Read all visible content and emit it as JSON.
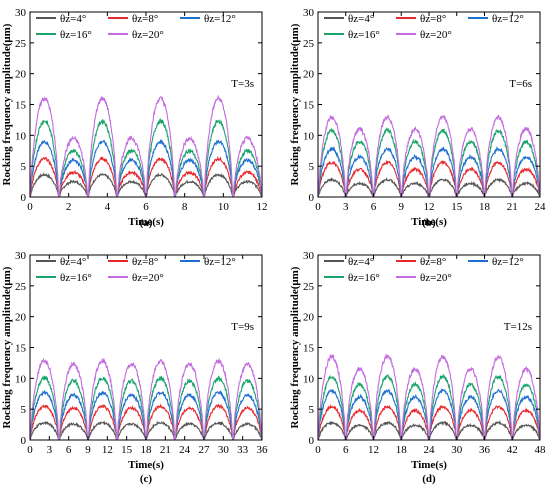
{
  "chart_data": [
    {
      "type": "line",
      "panel_label": "(a)",
      "annotation": "T=3s",
      "period": 3,
      "xlabel": "Time(s)",
      "ylabel": "Rocking frequency amplitude(μm)",
      "xlim": [
        0,
        12
      ],
      "ylim": [
        0,
        30
      ],
      "xticks": [
        0,
        2,
        4,
        6,
        8,
        10,
        12
      ],
      "yticks": [
        0,
        5,
        10,
        15,
        20,
        25,
        30
      ],
      "legend_position": "top-left",
      "series": [
        {
          "name": "θz=4°",
          "color": "#555555",
          "peak": 3.6,
          "secondary": 2.5
        },
        {
          "name": "θz=8°",
          "color": "#e8282c",
          "peak": 6.2,
          "secondary": 4.0
        },
        {
          "name": "θz=12°",
          "color": "#1f6fd1",
          "peak": 9.0,
          "secondary": 6.0
        },
        {
          "name": "θz=16°",
          "color": "#1aa36b",
          "peak": 12.3,
          "secondary": 7.5
        },
        {
          "name": "θz=20°",
          "color": "#c36bdf",
          "peak": 16.0,
          "secondary": 9.5
        }
      ]
    },
    {
      "type": "line",
      "panel_label": "(b)",
      "annotation": "T=6s",
      "period": 6,
      "xlabel": "Time(s)",
      "ylabel": "Rocking frequency amplitude(μm)",
      "xlim": [
        0,
        24
      ],
      "ylim": [
        0,
        30
      ],
      "xticks": [
        0,
        3,
        6,
        9,
        12,
        15,
        18,
        21,
        24
      ],
      "yticks": [
        0,
        5,
        10,
        15,
        20,
        25,
        30
      ],
      "legend_position": "top-left",
      "series": [
        {
          "name": "θz=4°",
          "color": "#555555",
          "peak": 2.8,
          "secondary": 2.2
        },
        {
          "name": "θz=8°",
          "color": "#e8282c",
          "peak": 5.6,
          "secondary": 4.5
        },
        {
          "name": "θz=12°",
          "color": "#1f6fd1",
          "peak": 7.8,
          "secondary": 6.5
        },
        {
          "name": "θz=16°",
          "color": "#1aa36b",
          "peak": 10.8,
          "secondary": 9.0
        },
        {
          "name": "θz=20°",
          "color": "#c36bdf",
          "peak": 13.0,
          "secondary": 11.0
        }
      ]
    },
    {
      "type": "line",
      "panel_label": "(c)",
      "annotation": "T=9s",
      "period": 9,
      "xlabel": "Time(s)",
      "ylabel": "Rocking frequency amplitude(μm)",
      "xlim": [
        0,
        36
      ],
      "ylim": [
        0,
        30
      ],
      "xticks": [
        0,
        3,
        6,
        9,
        12,
        15,
        18,
        21,
        24,
        27,
        30,
        33,
        36
      ],
      "yticks": [
        0,
        5,
        10,
        15,
        20,
        25,
        30
      ],
      "legend_position": "top-left",
      "series": [
        {
          "name": "θz=4°",
          "color": "#555555",
          "peak": 2.8,
          "secondary": 2.6
        },
        {
          "name": "θz=8°",
          "color": "#e8282c",
          "peak": 5.5,
          "secondary": 5.2
        },
        {
          "name": "θz=12°",
          "color": "#1f6fd1",
          "peak": 7.7,
          "secondary": 7.3
        },
        {
          "name": "θz=16°",
          "color": "#1aa36b",
          "peak": 10.0,
          "secondary": 9.6
        },
        {
          "name": "θz=20°",
          "color": "#c36bdf",
          "peak": 12.8,
          "secondary": 12.3
        }
      ]
    },
    {
      "type": "line",
      "panel_label": "(d)",
      "annotation": "T=12s",
      "period": 12,
      "xlabel": "Time(s)",
      "ylabel": "Rocking frequency amplitude(μm)",
      "xlim": [
        0,
        48
      ],
      "ylim": [
        0,
        30
      ],
      "xticks": [
        0,
        6,
        12,
        18,
        24,
        30,
        36,
        42,
        48
      ],
      "yticks": [
        0,
        5,
        10,
        15,
        20,
        25,
        30
      ],
      "legend_position": "top-left",
      "series": [
        {
          "name": "θz=4°",
          "color": "#555555",
          "peak": 2.8,
          "secondary": 2.4
        },
        {
          "name": "θz=8°",
          "color": "#e8282c",
          "peak": 5.4,
          "secondary": 4.8
        },
        {
          "name": "θz=12°",
          "color": "#1f6fd1",
          "peak": 8.0,
          "secondary": 7.0
        },
        {
          "name": "θz=16°",
          "color": "#1aa36b",
          "peak": 10.3,
          "secondary": 9.0
        },
        {
          "name": "θz=20°",
          "color": "#c36bdf",
          "peak": 13.5,
          "secondary": 11.5
        }
      ]
    }
  ]
}
